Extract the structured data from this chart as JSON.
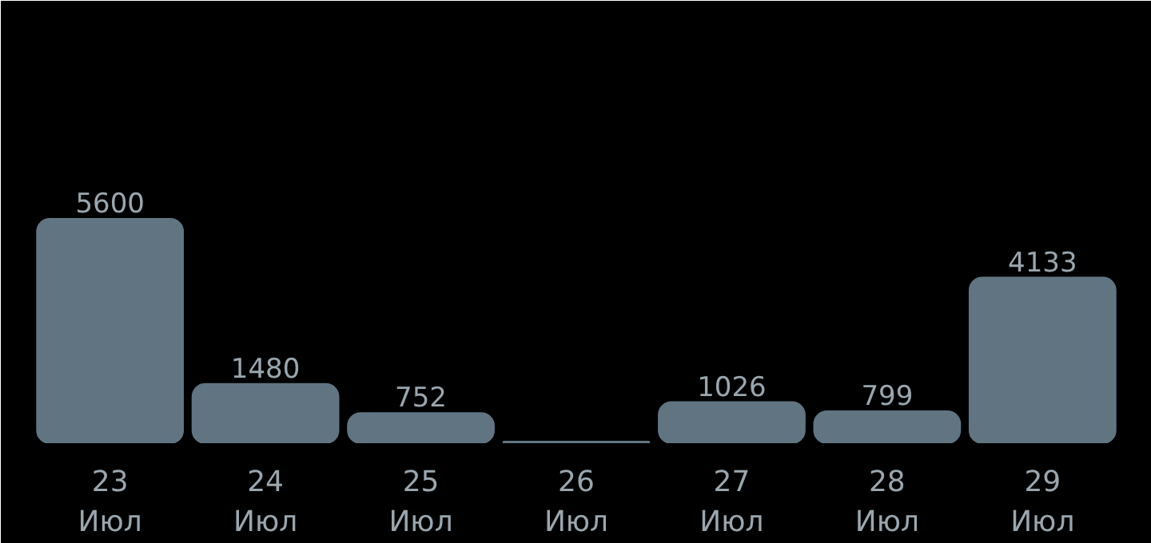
{
  "chart_data": {
    "type": "bar",
    "categories": [
      "23\nИюл",
      "24\nИюл",
      "25\nИюл",
      "26\nИюл",
      "27\nИюл",
      "28\nИюл",
      "29\nИюл"
    ],
    "values": [
      5600,
      1480,
      752,
      40,
      1026,
      799,
      4133
    ],
    "value_labels": [
      "5600",
      "1480",
      "752",
      null,
      "1026",
      "799",
      "4133"
    ],
    "color": "#617482",
    "grid": false
  }
}
